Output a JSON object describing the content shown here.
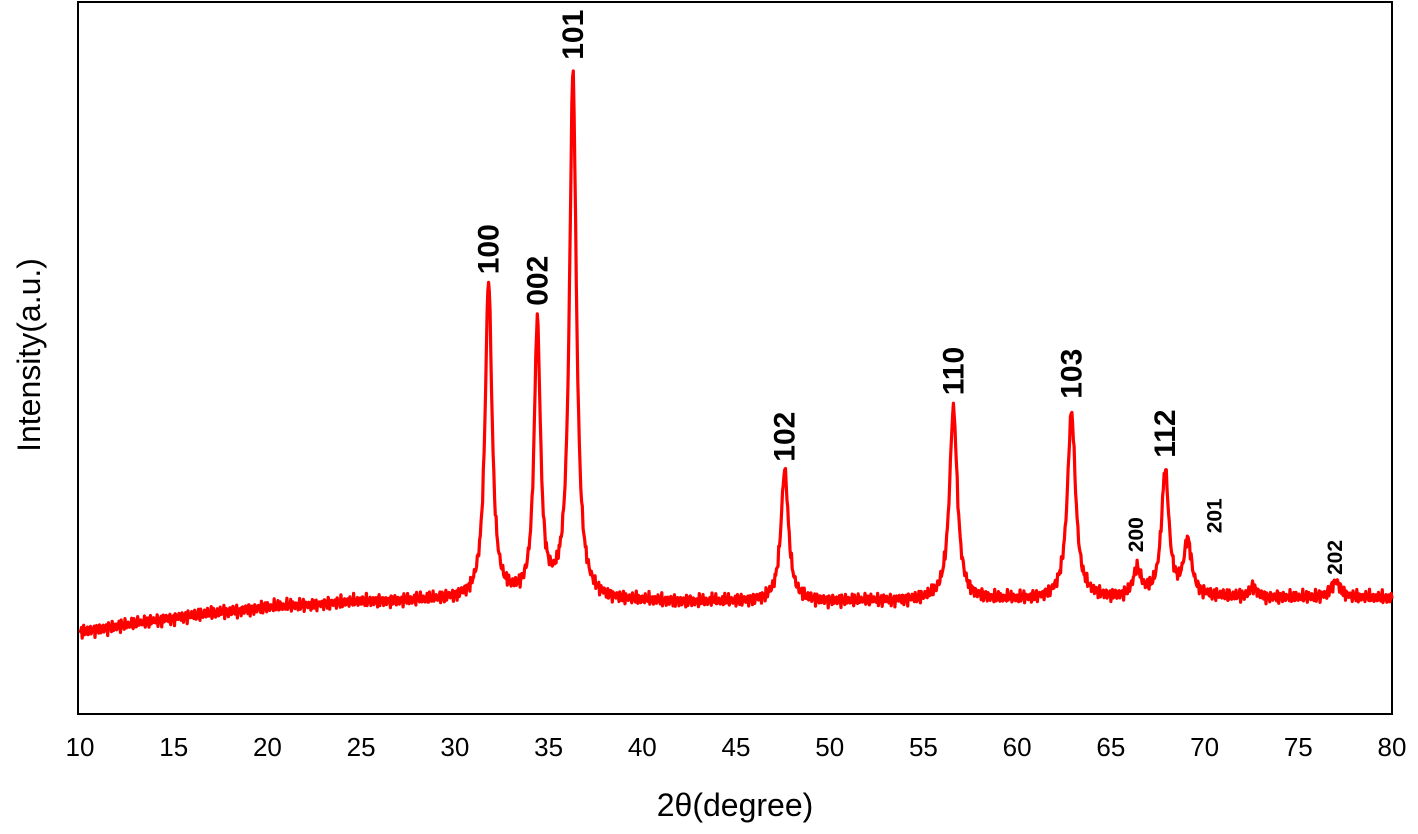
{
  "chart_data": {
    "type": "line",
    "xlabel": "2θ(degree)",
    "ylabel": "Intensity(a.u.)",
    "xlim": [
      10,
      80
    ],
    "ylim": [
      -0.15,
      1.15
    ],
    "x_ticks": [
      10,
      15,
      20,
      25,
      30,
      35,
      40,
      45,
      50,
      55,
      60,
      65,
      70,
      75,
      80
    ],
    "y_ticks_shown": false,
    "grid": false,
    "legend": "none",
    "line_color": "#ff0000",
    "baseline": [
      [
        10,
        0.0
      ],
      [
        15,
        0.025
      ],
      [
        20,
        0.045
      ],
      [
        25,
        0.055
      ],
      [
        30,
        0.058
      ],
      [
        40,
        0.055
      ],
      [
        50,
        0.055
      ],
      [
        60,
        0.058
      ],
      [
        70,
        0.062
      ],
      [
        80,
        0.062
      ]
    ],
    "peaks": [
      {
        "x": 31.8,
        "y": 0.58,
        "width": 0.22,
        "label": "100"
      },
      {
        "x": 34.4,
        "y": 0.5,
        "width": 0.2,
        "label": "002"
      },
      {
        "x": 36.3,
        "y": 0.96,
        "width": 0.22,
        "label": "101"
      },
      {
        "x": 47.6,
        "y": 0.24,
        "width": 0.24,
        "label": "102"
      },
      {
        "x": 56.6,
        "y": 0.35,
        "width": 0.25,
        "label": "110"
      },
      {
        "x": 62.9,
        "y": 0.34,
        "width": 0.26,
        "label": "103"
      },
      {
        "x": 66.4,
        "y": 0.05,
        "width": 0.25,
        "label": "200"
      },
      {
        "x": 67.9,
        "y": 0.23,
        "width": 0.24,
        "label": "112"
      },
      {
        "x": 69.1,
        "y": 0.1,
        "width": 0.25,
        "label": "201"
      },
      {
        "x": 72.6,
        "y": 0.02,
        "width": 0.22,
        "label": ""
      },
      {
        "x": 77.0,
        "y": 0.03,
        "width": 0.3,
        "label": "202"
      }
    ]
  }
}
